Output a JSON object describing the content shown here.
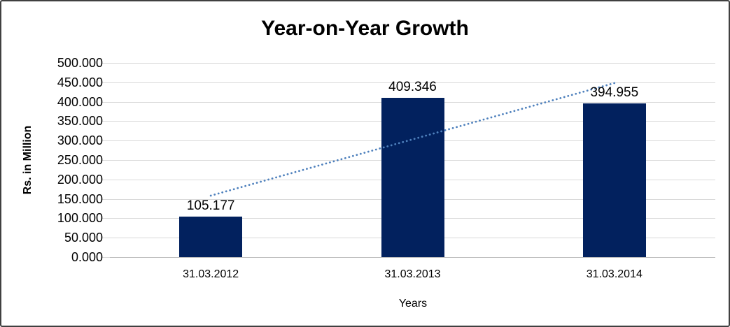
{
  "chart_data": {
    "type": "bar",
    "title": "Year-on-Year Growth",
    "xlabel": "Years",
    "ylabel": "Rs. in Million",
    "categories": [
      "31.03.2012",
      "31.03.2013",
      "31.03.2014"
    ],
    "values": [
      105.177,
      409.346,
      394.955
    ],
    "value_labels": [
      "105.177",
      "409.346",
      "394.955"
    ],
    "y_ticks": [
      "500.000",
      "450.000",
      "400.000",
      "350.000",
      "300.000",
      "250.000",
      "200.000",
      "150.000",
      "100.000",
      "50.000",
      "0.000"
    ],
    "ylim": [
      0,
      500
    ],
    "grid": true,
    "legend_visible": false,
    "trendline": {
      "type": "linear",
      "style": "dotted"
    },
    "colors": {
      "bar": "#02215e",
      "trendline": "#4f81bd",
      "gridline": "#d9d9d9",
      "text": "#000000",
      "frame_border": "#404040",
      "background": "#ffffff"
    }
  }
}
